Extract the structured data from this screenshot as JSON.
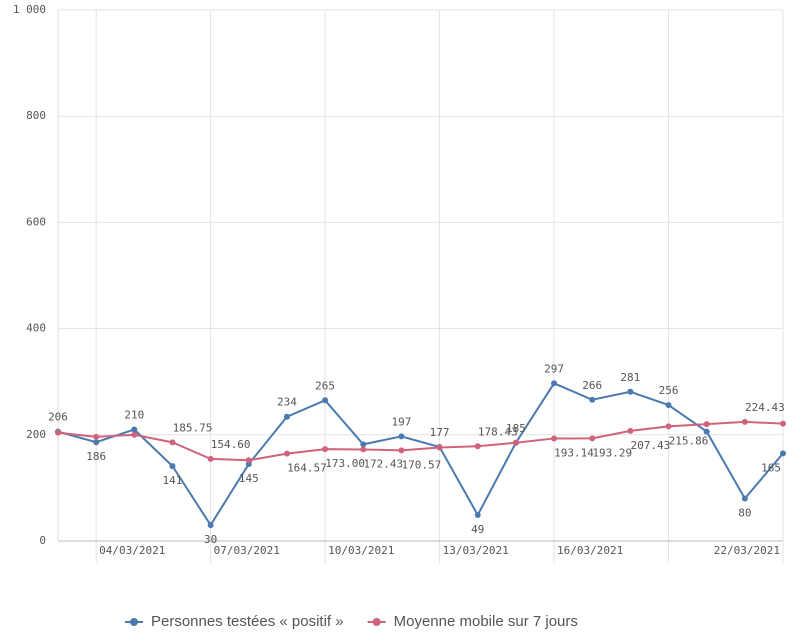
{
  "chart_data": {
    "type": "line",
    "categories": [
      null,
      "04/03/2021",
      null,
      null,
      "07/03/2021",
      null,
      null,
      "10/03/2021",
      null,
      null,
      "13/03/2021",
      null,
      null,
      "16/03/2021",
      null,
      null,
      null,
      null,
      null,
      "22/03/2021"
    ],
    "series": [
      {
        "name": "Personnes testées « positif »",
        "color": "#4a7aae",
        "values": [
          206,
          186,
          210,
          141,
          30,
          145,
          234,
          265,
          182,
          197,
          177,
          49,
          185,
          297,
          266,
          281,
          256,
          206,
          80,
          165
        ],
        "value_labels": [
          "206",
          "186",
          "210",
          "141",
          "30",
          "145",
          "234",
          "265",
          null,
          "197",
          "177",
          "49",
          "185",
          "297",
          "266",
          "281",
          "256",
          null,
          "80",
          "165"
        ]
      },
      {
        "name": "Moyenne mobile sur 7 jours",
        "color": "#d0637c",
        "values": [
          204,
          196,
          200,
          185.75,
          154.6,
          152,
          164.57,
          173,
          172.43,
          170.57,
          176,
          178.43,
          185,
          193.14,
          193.29,
          207.43,
          215.86,
          220,
          224.43,
          221
        ],
        "value_labels": [
          null,
          null,
          null,
          "185.75",
          "154.60",
          null,
          "164.57",
          "173.00",
          "172.43",
          "170.57",
          null,
          "178.43",
          null,
          "193.14",
          "193.29",
          "207.43",
          "215.86",
          null,
          "224.43",
          null
        ]
      }
    ],
    "ylim": [
      0,
      1000
    ],
    "yticks": [
      0,
      200,
      400,
      600,
      800,
      {
        "value": 1000,
        "label": "1 000"
      }
    ],
    "grid": true
  }
}
